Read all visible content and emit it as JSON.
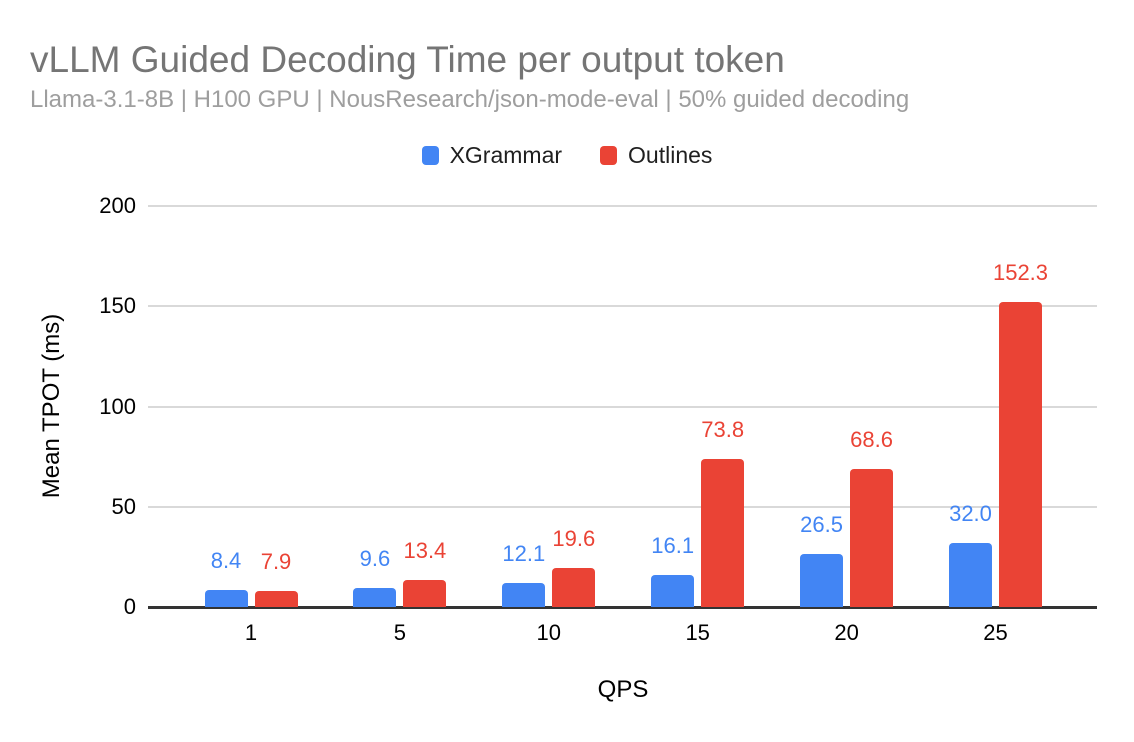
{
  "chart_data": {
    "type": "bar",
    "title": "vLLM Guided Decoding Time per output token",
    "subtitle": "Llama-3.1-8B | H100 GPU | NousResearch/json-mode-eval | 50% guided decoding",
    "categories": [
      "1",
      "5",
      "10",
      "15",
      "20",
      "25"
    ],
    "series": [
      {
        "name": "XGrammar",
        "color": "#4285F4",
        "values": [
          8.4,
          9.6,
          12.1,
          16.1,
          26.5,
          32.0
        ]
      },
      {
        "name": "Outlines",
        "color": "#EA4335",
        "values": [
          7.9,
          13.4,
          19.6,
          73.8,
          68.6,
          152.3
        ]
      }
    ],
    "xlabel": "QPS",
    "ylabel": "Mean TPOT (ms)",
    "ylim": [
      0,
      200
    ],
    "yticks": [
      0,
      50,
      100,
      150,
      200
    ],
    "grid": true,
    "legend_position": "top",
    "data_labels": "one_decimal",
    "axis_line_color": "#333333",
    "gridline_color": "#d9d9d9"
  }
}
